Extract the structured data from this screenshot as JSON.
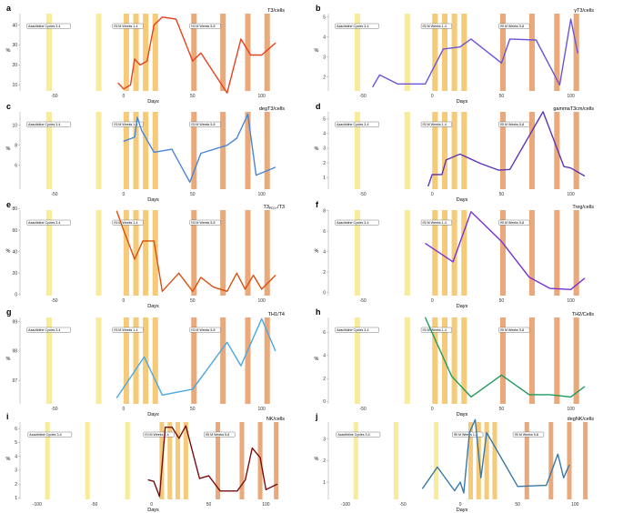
{
  "colors": {
    "azacitidine": "#f7e98e",
    "isl_m_1_4": "#f4c56a",
    "isl_m_5_8": "#e8a06b"
  },
  "chart_data": [
    {
      "panel": "a",
      "type": "line",
      "title": "T3/cells",
      "xlabel": "Days",
      "ylabel": "%",
      "color": "#e8401c",
      "xlim": [
        -75,
        118
      ],
      "xticks": [
        -50,
        0,
        50,
        100
      ],
      "ylim": [
        7,
        48
      ],
      "yticks": [
        10,
        20,
        30,
        40
      ],
      "bands_variant": 0,
      "annotations": [
        "Azacitidine Cycles 3-4",
        "ISl M Weeks 1-4",
        "ISl M Weeks 5-8"
      ],
      "x": [
        -4,
        0,
        5,
        8,
        12,
        17,
        22,
        28,
        38,
        50,
        56,
        75,
        85,
        92,
        100,
        110
      ],
      "y": [
        11,
        8,
        10,
        23,
        20,
        22,
        40,
        44,
        43,
        22,
        26,
        6,
        33,
        25,
        25,
        31
      ]
    },
    {
      "panel": "b",
      "type": "line",
      "title": "γT3/cells",
      "xlabel": "Days",
      "ylabel": "%",
      "color": "#6b55d6",
      "xlim": [
        -75,
        118
      ],
      "xticks": [
        -50,
        0,
        50,
        100
      ],
      "ylim": [
        1.3,
        5.4
      ],
      "yticks": [
        2,
        3,
        4,
        5
      ],
      "bands_variant": 0,
      "annotations": [
        "Azacitidine Cycles 3-4",
        "ISl M Weeks 1-4",
        "ISl M Weeks 5-8"
      ],
      "x": [
        -43,
        -38,
        -25,
        -5,
        8,
        20,
        28,
        50,
        56,
        75,
        92,
        100,
        105
      ],
      "y": [
        1.5,
        2.1,
        1.65,
        1.65,
        3.4,
        3.5,
        3.9,
        2.7,
        3.9,
        3.85,
        1.6,
        4.9,
        3.2
      ]
    },
    {
      "panel": "c",
      "type": "line",
      "title": "degT3/cells",
      "xlabel": "Days",
      "ylabel": "%",
      "color": "#4a86d8",
      "xlim": [
        -75,
        118
      ],
      "xticks": [
        -50,
        0,
        50,
        100
      ],
      "ylim": [
        3.6,
        11.8
      ],
      "yticks": [
        6,
        8,
        10
      ],
      "bands_variant": 0,
      "annotations": [
        "Azacitidine Cycles 3-4",
        "ISl M Weeks 1-4",
        "ISl M Weeks 5-8"
      ],
      "x": [
        0,
        8,
        10,
        13,
        22,
        35,
        48,
        56,
        75,
        82,
        90,
        96,
        110
      ],
      "y": [
        8.4,
        8.8,
        10.8,
        9.5,
        7.3,
        7.6,
        4.3,
        7.2,
        8.0,
        8.7,
        11.1,
        5.0,
        5.8
      ]
    },
    {
      "panel": "d",
      "type": "line",
      "title": "gammaT3cm/cells",
      "xlabel": "Days",
      "ylabel": "%",
      "color": "#5b35b6",
      "xlim": [
        -75,
        118
      ],
      "xticks": [
        -50,
        0,
        50,
        100
      ],
      "ylim": [
        0.2,
        5.8
      ],
      "yticks": [
        1,
        2,
        3,
        4,
        5
      ],
      "bands_variant": 0,
      "annotations": [
        "Azacitidine Cycles 3-4",
        "ISl M Weeks 1-4",
        "ISl M Weeks 5-8"
      ],
      "x": [
        -3,
        0,
        7,
        10,
        20,
        35,
        48,
        56,
        80,
        95,
        100,
        110
      ],
      "y": [
        0.4,
        1.2,
        1.2,
        2.2,
        2.6,
        1.95,
        1.5,
        1.55,
        5.5,
        1.75,
        1.65,
        1.1
      ]
    },
    {
      "panel": "e",
      "type": "line",
      "title": "T3PD1+/T3",
      "xlabel": "Days",
      "ylabel": "%",
      "color": "#d85010",
      "xlim": [
        -75,
        118
      ],
      "xticks": [
        -50,
        0,
        50,
        100
      ],
      "ylim": [
        -1,
        83
      ],
      "yticks": [
        0,
        20,
        40,
        60,
        80
      ],
      "bands_variant": 0,
      "annotations": [
        "Azacitidine Cycles 3-4",
        "ISl M Weeks 1-4",
        "ISl M Weeks 5-8"
      ],
      "x": [
        -5,
        0,
        8,
        14,
        22,
        28,
        40,
        50,
        56,
        65,
        75,
        82,
        88,
        94,
        100,
        110
      ],
      "y": [
        78,
        60,
        33,
        50,
        50,
        3,
        20,
        3,
        16,
        7,
        3,
        20,
        5,
        18,
        5,
        18
      ]
    },
    {
      "panel": "f",
      "type": "line",
      "title": "Treg/cells",
      "xlabel": "Days",
      "ylabel": "%",
      "color": "#7a30d6",
      "xlim": [
        -75,
        118
      ],
      "xticks": [
        -50,
        0,
        50,
        100
      ],
      "ylim": [
        -0.3,
        8.5
      ],
      "yticks": [
        0,
        2,
        4,
        6,
        8
      ],
      "bands_variant": 0,
      "annotations": [
        "Azacitidine Cycles 3-4",
        "ISl M Weeks 1-4",
        "ISl M Weeks 5-8"
      ],
      "x": [
        -5,
        15,
        28,
        50,
        70,
        85,
        100,
        110
      ],
      "y": [
        4.8,
        3.0,
        7.9,
        5.0,
        1.5,
        0.4,
        0.3,
        1.4
      ]
    },
    {
      "panel": "g",
      "type": "line",
      "title": "TH1/T4",
      "xlabel": "Days",
      "ylabel": "%",
      "color": "#4aa8e0",
      "xlim": [
        -75,
        118
      ],
      "xticks": [
        -50,
        0,
        50,
        100
      ],
      "ylim": [
        96.2,
        99.3
      ],
      "yticks": [
        97,
        98,
        99
      ],
      "bands_variant": 0,
      "annotations": [
        "Azacitidine Cycles 3-4",
        "ISl M Weeks 1-4",
        "ISl M Weeks 5-8"
      ],
      "x": [
        -5,
        15,
        28,
        50,
        75,
        85,
        100,
        110
      ],
      "y": [
        96.4,
        97.8,
        96.5,
        96.7,
        98.3,
        97.5,
        99.1,
        98.0
      ]
    },
    {
      "panel": "h",
      "type": "line",
      "title": "TH2/Cells",
      "xlabel": "Days",
      "ylabel": "%",
      "color": "#1f9a5e",
      "xlim": [
        -75,
        118
      ],
      "xticks": [
        -50,
        0,
        50,
        100
      ],
      "ylim": [
        -0.2,
        7.7
      ],
      "yticks": [
        0,
        2,
        4,
        6
      ],
      "bands_variant": 0,
      "annotations": [
        "Azacitidine Cycles 3-4",
        "ISl M Weeks 1-4",
        "ISl M Weeks 5-8"
      ],
      "x": [
        -5,
        14,
        28,
        50,
        70,
        85,
        100,
        110
      ],
      "y": [
        7.3,
        2.2,
        0.4,
        2.3,
        0.6,
        0.6,
        0.4,
        1.3
      ]
    },
    {
      "panel": "i",
      "type": "line",
      "title": "NK/cells",
      "xlabel": "Days",
      "ylabel": "%",
      "color": "#7a0e0e",
      "xlim": [
        -115,
        118
      ],
      "xticks": [
        -100,
        -50,
        0,
        50,
        100
      ],
      "ylim": [
        0.9,
        6.8
      ],
      "yticks": [
        1,
        2,
        3,
        4,
        5,
        6
      ],
      "bands_variant": 1,
      "annotations": [
        "Azacitidine Cycles 3-4",
        "ISl M Weeks 1-4",
        "ISl M Weeks 5-8"
      ],
      "x": [
        -3,
        2,
        7,
        12,
        18,
        24,
        30,
        42,
        50,
        60,
        75,
        82,
        88,
        95,
        100,
        110
      ],
      "y": [
        2.3,
        2.2,
        1.1,
        6.1,
        6.1,
        5.3,
        6.2,
        2.4,
        2.6,
        1.5,
        1.5,
        2.3,
        4.6,
        3.9,
        1.6,
        2.0
      ]
    },
    {
      "panel": "j",
      "type": "line",
      "title": "degNK/cells",
      "xlabel": "Days",
      "ylabel": "%",
      "color": "#3a78a8",
      "xlim": [
        -115,
        118
      ],
      "xticks": [
        -100,
        -50,
        0,
        50,
        100
      ],
      "ylim": [
        0.2,
        4.0
      ],
      "yticks": [
        1,
        2,
        3
      ],
      "bands_variant": 1,
      "annotations": [
        "Azacitidine Cycles 3-4",
        "ISl M Weeks 1-4",
        "ISl M Weeks 5-8"
      ],
      "x": [
        -33,
        -20,
        -5,
        0,
        3,
        8,
        13,
        18,
        23,
        50,
        75,
        85,
        90,
        95
      ],
      "y": [
        0.7,
        1.7,
        0.6,
        1.0,
        0.5,
        3.3,
        3.9,
        1.2,
        3.3,
        0.8,
        0.85,
        2.3,
        1.2,
        1.8
      ]
    }
  ]
}
